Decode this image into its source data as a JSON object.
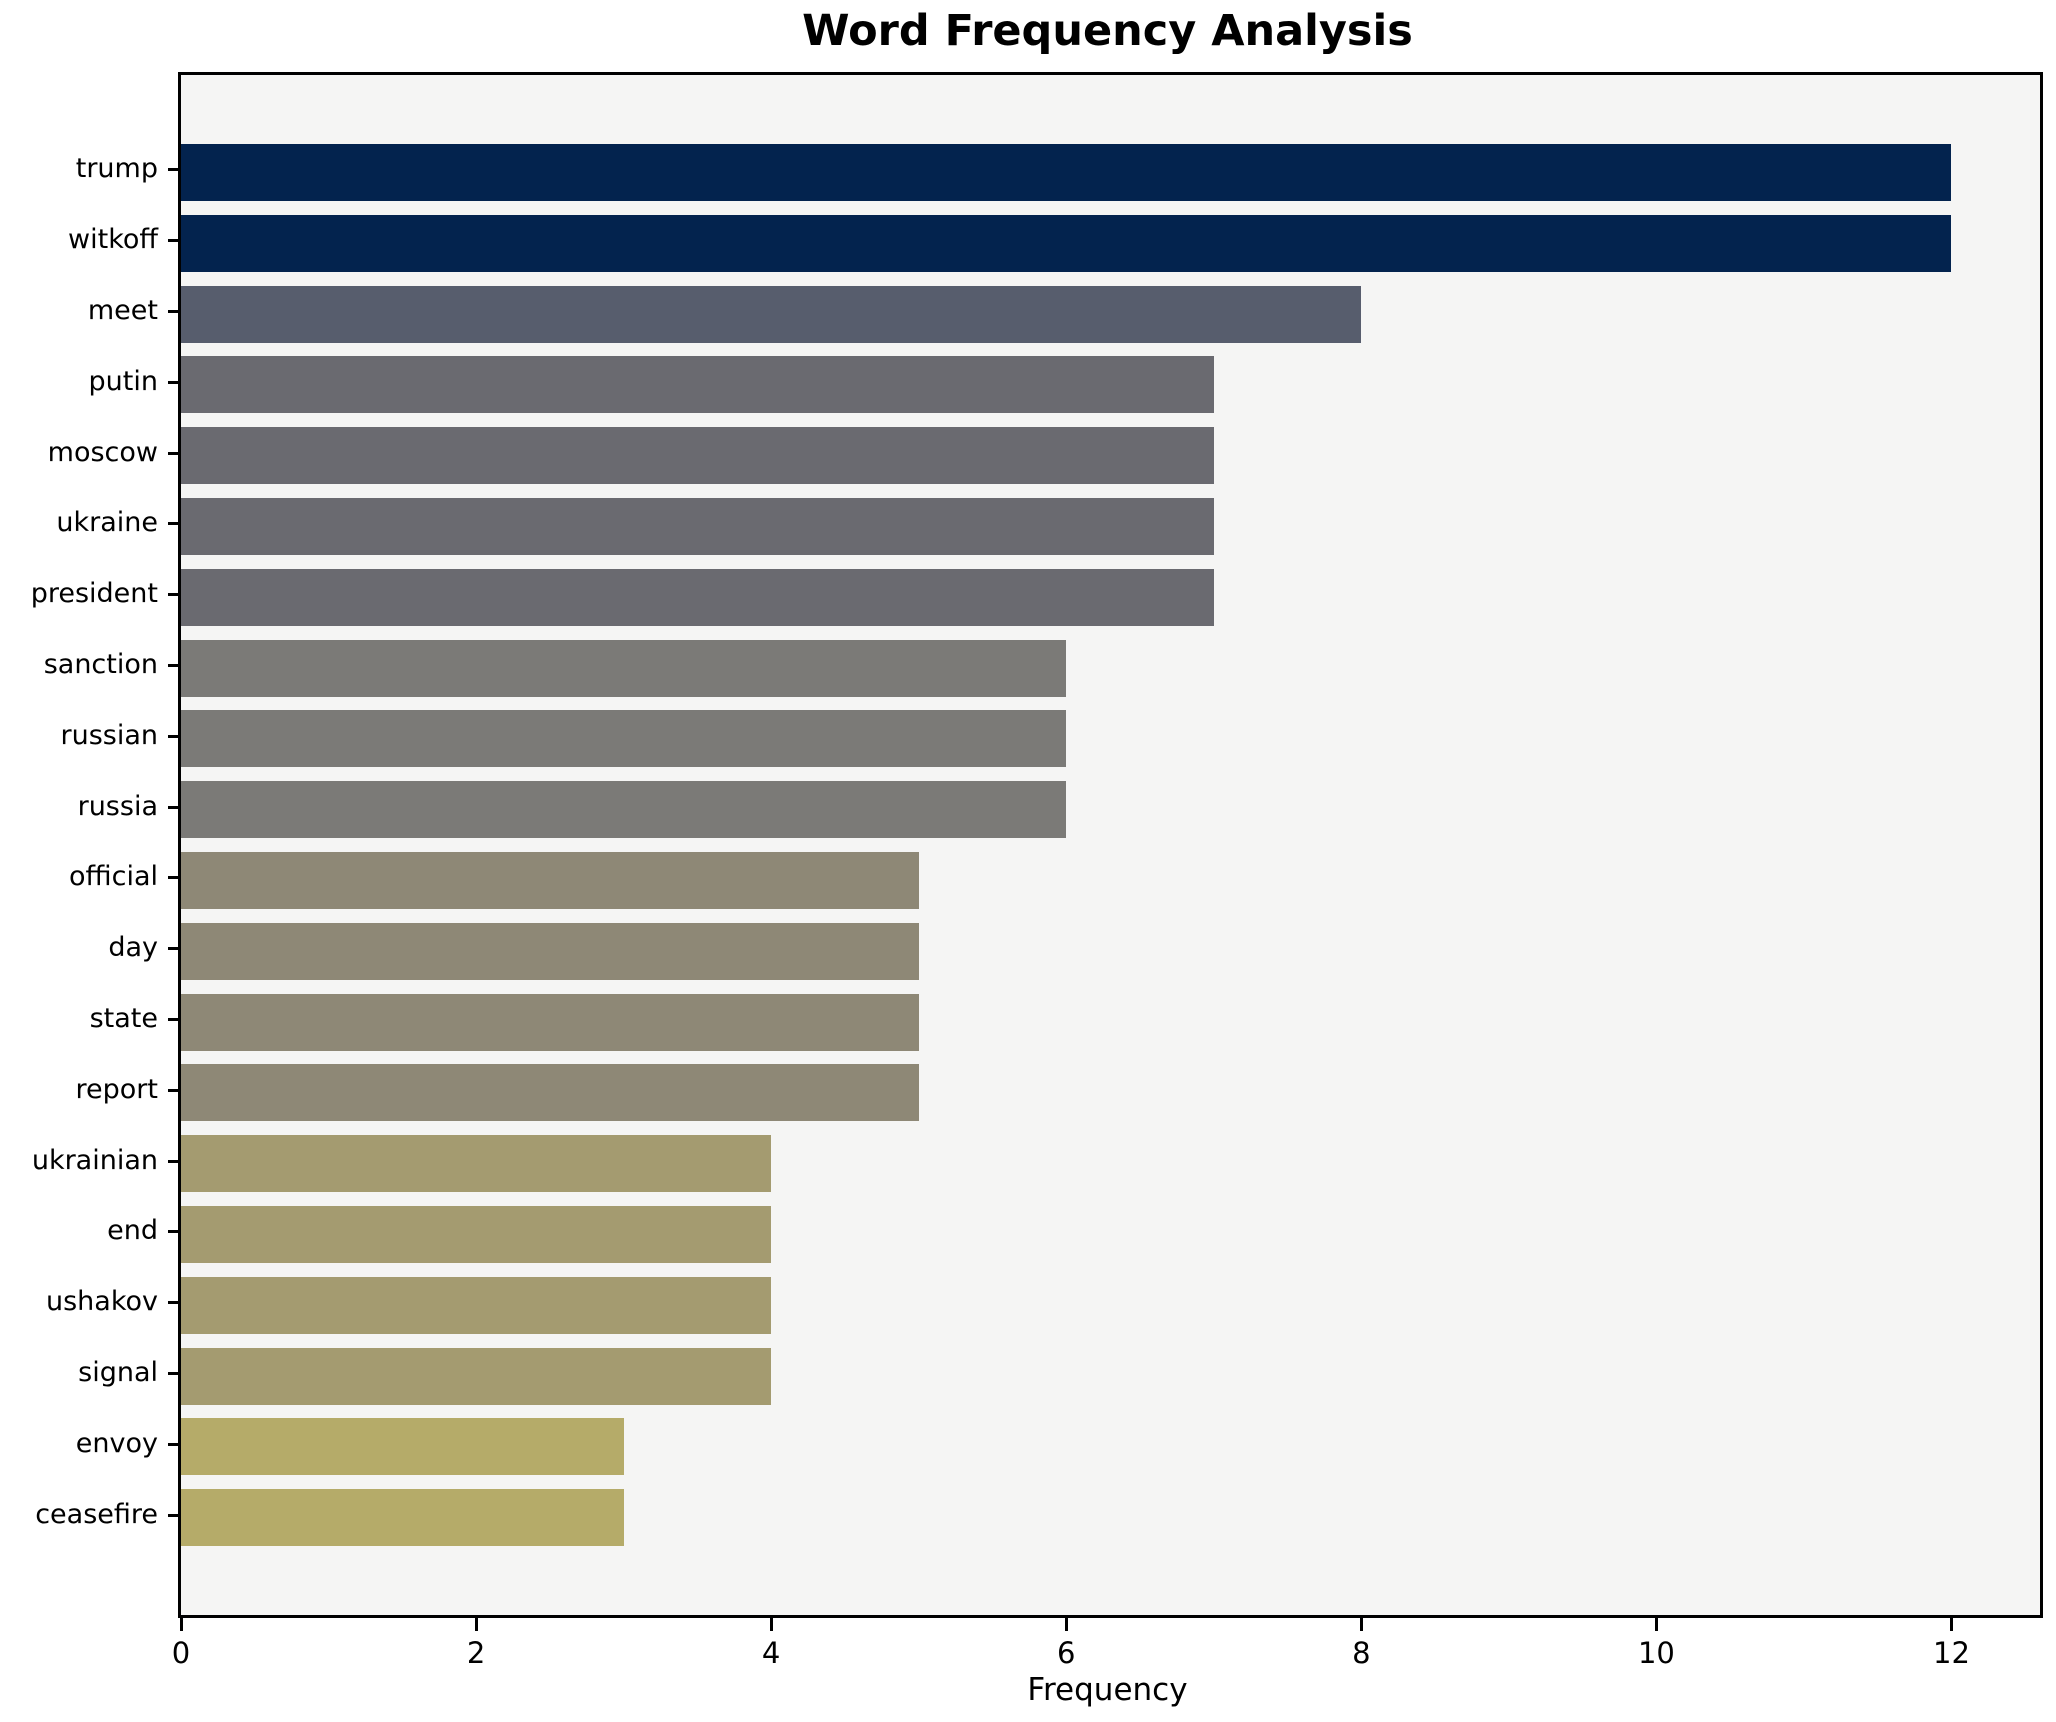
{
  "chart_data": {
    "type": "bar",
    "orientation": "horizontal",
    "title": "Word Frequency Analysis",
    "xlabel": "Frequency",
    "ylabel": "",
    "categories": [
      "trump",
      "witkoff",
      "meet",
      "putin",
      "moscow",
      "ukraine",
      "president",
      "sanction",
      "russian",
      "russia",
      "official",
      "day",
      "state",
      "report",
      "ukrainian",
      "end",
      "ushakov",
      "signal",
      "envoy",
      "ceasefire"
    ],
    "values": [
      12,
      12,
      8,
      7,
      7,
      7,
      7,
      6,
      6,
      6,
      5,
      5,
      5,
      5,
      4,
      4,
      4,
      4,
      3,
      3
    ],
    "bar_colors": [
      "#03234e",
      "#03234e",
      "#575d6d",
      "#6a6a70",
      "#6a6a70",
      "#6a6a70",
      "#6a6a70",
      "#7b7a77",
      "#7b7a77",
      "#7b7a77",
      "#8e8876",
      "#8e8876",
      "#8e8876",
      "#8e8876",
      "#a49b70",
      "#a49b70",
      "#a49b70",
      "#a49b70",
      "#b5ab69",
      "#b5ab69"
    ],
    "xlim": [
      0,
      12.6
    ],
    "xticks": [
      0,
      2,
      4,
      6,
      8,
      10,
      12
    ],
    "grid": false,
    "legend": "none",
    "plot_background": "#f5f5f4",
    "figure_background": "#ffffff",
    "axis_color": "#000000"
  }
}
